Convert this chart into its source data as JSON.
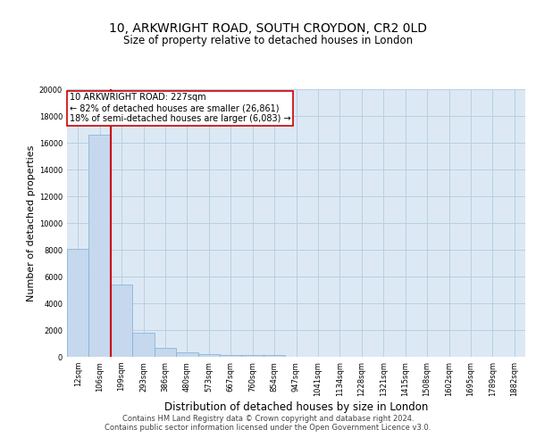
{
  "title_line1": "10, ARKWRIGHT ROAD, SOUTH CROYDON, CR2 0LD",
  "title_line2": "Size of property relative to detached houses in London",
  "xlabel": "Distribution of detached houses by size in London",
  "ylabel": "Number of detached properties",
  "annotation_line1": "10 ARKWRIGHT ROAD: 227sqm",
  "annotation_line2": "← 82% of detached houses are smaller (26,861)",
  "annotation_line3": "18% of semi-detached houses are larger (6,083) →",
  "footer_line1": "Contains HM Land Registry data © Crown copyright and database right 2024.",
  "footer_line2": "Contains public sector information licensed under the Open Government Licence v3.0.",
  "bin_labels": [
    "12sqm",
    "106sqm",
    "199sqm",
    "293sqm",
    "386sqm",
    "480sqm",
    "573sqm",
    "667sqm",
    "760sqm",
    "854sqm",
    "947sqm",
    "1041sqm",
    "1134sqm",
    "1228sqm",
    "1321sqm",
    "1415sqm",
    "1508sqm",
    "1602sqm",
    "1695sqm",
    "1789sqm",
    "1882sqm"
  ],
  "bar_heights": [
    8100,
    16600,
    5400,
    1800,
    650,
    320,
    180,
    140,
    130,
    115,
    0,
    0,
    0,
    0,
    0,
    0,
    0,
    0,
    0,
    0,
    0
  ],
  "bar_color": "#c5d8ee",
  "bar_edge_color": "#7bafd4",
  "vline_color": "#cc0000",
  "background_color": "#ffffff",
  "plot_bg_color": "#dce9f5",
  "grid_color": "#b8cfe0",
  "ylim": [
    0,
    20000
  ],
  "yticks": [
    0,
    2000,
    4000,
    6000,
    8000,
    10000,
    12000,
    14000,
    16000,
    18000,
    20000
  ],
  "title1_fontsize": 10,
  "title2_fontsize": 8.5,
  "ylabel_fontsize": 8,
  "xlabel_fontsize": 8.5,
  "tick_fontsize": 6,
  "ann_fontsize": 7,
  "footer_fontsize": 6
}
